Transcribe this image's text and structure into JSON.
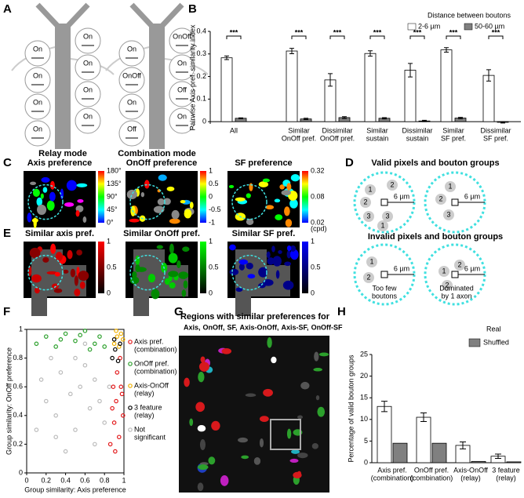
{
  "panel_labels": [
    "A",
    "B",
    "C",
    "D",
    "E",
    "F",
    "G",
    "H"
  ],
  "panel_a": {
    "relay_title": "Relay mode",
    "combination_title": "Combination mode",
    "relay_boutons": [
      "On",
      "On",
      "On",
      "On",
      "On",
      "On",
      "On",
      "On"
    ],
    "combination_boutons": [
      "On",
      "OnOff",
      "On",
      "Off",
      "OnOff",
      "On",
      "Off",
      "On"
    ]
  },
  "panel_c": {
    "titles": [
      "Axis preference",
      "OnOff preference",
      "SF preference"
    ],
    "colorbar_ticks": [
      [
        "180°",
        "135°",
        "90°",
        "45°",
        "0°"
      ],
      [
        "1",
        "0.5",
        "0",
        "-0.5",
        "-1"
      ],
      [
        "0.32",
        "0.08",
        "0.02"
      ]
    ],
    "unit": "(cpd)"
  },
  "panel_d": {
    "valid_title": "Valid pixels and bouton groups",
    "invalid_title": "Invalid pixels and bouton groups",
    "distance": "6 µm",
    "valid_left_boutons": [
      "1",
      "2",
      "3",
      "2",
      "3",
      "1"
    ],
    "valid_right_boutons": [
      "1",
      "2",
      "3"
    ],
    "invalid_left_boutons": [
      "1",
      "2"
    ],
    "invalid_right_boutons": [
      "1",
      "2",
      "2"
    ],
    "too_few": [
      "Too few",
      "boutons"
    ],
    "dominated": [
      "Dominated",
      "by 1 axon"
    ]
  },
  "panel_e": {
    "titles": [
      "Similar axis pref.",
      "Similar OnOff pref.",
      "Similar SF pref."
    ],
    "title_colors": [
      "#d7191c",
      "#2ca02c",
      "#1f3fbf"
    ],
    "colorbar_ticks": [
      "1",
      "0.5",
      "0"
    ]
  },
  "panel_g": {
    "title": "Regions with similar preferences for",
    "groups": [
      "Axis,",
      "OnOff,",
      "SF,",
      "Axis-OnOff,",
      "Axis-SF,",
      "OnOff-SF"
    ],
    "group_colors": [
      "#d7191c",
      "#2ca02c",
      "#1f3fbf",
      "#f0b000",
      "#c020c0",
      "#20b0c0"
    ]
  },
  "chart_data": [
    {
      "type": "bar",
      "ylabel": "Pairwise Axis pref. similarity index",
      "legend_title": "Distance between boutons",
      "categories": [
        [
          "All"
        ],
        [
          "Similar",
          "OnOff pref."
        ],
        [
          "Dissimilar",
          "OnOff pref."
        ],
        [
          "Similar",
          "sustain"
        ],
        [
          "Dissimilar",
          "sustain"
        ],
        [
          "Similar",
          "SF pref."
        ],
        [
          "Dissimilar",
          "SF pref."
        ]
      ],
      "series": [
        {
          "name": "2-6 µm",
          "color": "#ffffff",
          "values": [
            0.283,
            0.313,
            0.185,
            0.302,
            0.228,
            0.318,
            0.205
          ],
          "errors": [
            0.008,
            0.012,
            0.028,
            0.012,
            0.03,
            0.01,
            0.025
          ]
        },
        {
          "name": "50-60 µm",
          "color": "#808080",
          "values": [
            0.015,
            0.012,
            0.018,
            0.015,
            0.003,
            0.016,
            -0.003
          ],
          "errors": [
            0.002,
            0.003,
            0.004,
            0.003,
            0.003,
            0.003,
            0.003
          ]
        }
      ],
      "significance": [
        "***",
        "***",
        "***",
        "***",
        "***",
        "***",
        "***"
      ],
      "ylim": [
        -0.01,
        0.4
      ],
      "yticks": [
        0,
        0.1,
        0.2,
        0.3,
        0.4
      ]
    },
    {
      "type": "scatter",
      "xlabel": "Group similarity: Axis preference",
      "ylabel": "Group similarity: OnOff preference",
      "series": [
        {
          "name": [
            "Not",
            "significant"
          ],
          "color": "#bbbbbb",
          "x": [
            0.1,
            0.2,
            0.3,
            0.35,
            0.45,
            0.5,
            0.55,
            0.6,
            0.65,
            0.7,
            0.75,
            0.8,
            0.25,
            0.4,
            0.15,
            0.6,
            0.7,
            0.85,
            0.5,
            0.3
          ],
          "y": [
            0.3,
            0.5,
            0.4,
            0.7,
            0.55,
            0.3,
            0.6,
            0.75,
            0.45,
            0.2,
            0.5,
            0.35,
            0.8,
            0.15,
            0.65,
            0.9,
            0.65,
            0.6,
            0.8,
            0.25
          ]
        },
        {
          "name": [
            "Axis pref.",
            "(combination)"
          ],
          "color": "#e31a1c",
          "x": [
            0.86,
            0.9,
            0.92,
            0.95,
            0.97,
            0.88,
            0.93,
            0.99,
            0.91,
            0.96,
            0.89,
            0.98
          ],
          "y": [
            0.2,
            0.35,
            0.5,
            0.25,
            0.6,
            0.45,
            0.7,
            0.4,
            0.15,
            0.8,
            0.6,
            0.55
          ]
        },
        {
          "name": [
            "OnOff pref.",
            "(combination)"
          ],
          "color": "#2ca02c",
          "x": [
            0.1,
            0.2,
            0.3,
            0.4,
            0.5,
            0.6,
            0.7,
            0.75,
            0.8,
            0.35,
            0.55,
            0.65
          ],
          "y": [
            0.9,
            0.95,
            0.88,
            0.97,
            0.92,
            0.99,
            0.9,
            0.95,
            0.88,
            0.93,
            0.96,
            0.86
          ]
        },
        {
          "name": [
            "Axis-OnOff",
            "(relay)"
          ],
          "color": "#f0b000",
          "x": [
            0.9,
            0.93,
            0.95,
            0.97,
            0.99,
            0.92
          ],
          "y": [
            0.9,
            0.95,
            0.88,
            0.97,
            0.93,
            0.99
          ]
        },
        {
          "name": [
            "3 feature",
            "(relay)"
          ],
          "color": "#000000",
          "x": [
            0.88,
            0.91,
            0.94,
            0.96,
            0.9
          ],
          "y": [
            0.8,
            0.86,
            0.78,
            0.9,
            0.93
          ]
        }
      ],
      "xlim": [
        0,
        1
      ],
      "ylim": [
        0,
        1
      ],
      "xticks": [
        0,
        0.2,
        0.4,
        0.6,
        0.8,
        1
      ],
      "yticks": [
        0,
        0.2,
        0.4,
        0.6,
        0.8,
        1
      ]
    },
    {
      "type": "bar",
      "ylabel": "Percentage of valid bouton groups",
      "categories": [
        [
          "Axis pref.",
          "(combination)"
        ],
        [
          "OnOff pref.",
          "(combination)"
        ],
        [
          "Axis-OnOff",
          "(relay)"
        ],
        [
          "3 feature",
          "(relay)"
        ]
      ],
      "category_colors": [
        "#e31a1c",
        "#2ca02c",
        "#e6b800",
        "#000000"
      ],
      "series": [
        {
          "name": "Real",
          "color": "#ffffff",
          "values": [
            13,
            10.5,
            4,
            1.5
          ],
          "errors": [
            1.2,
            1,
            0.8,
            0.5
          ]
        },
        {
          "name": "Shuffled",
          "color": "#808080",
          "values": [
            4.5,
            4.5,
            0.3,
            0.2
          ]
        }
      ],
      "ylim": [
        0,
        25
      ],
      "yticks": [
        0,
        5,
        10,
        15,
        20,
        25
      ]
    }
  ]
}
